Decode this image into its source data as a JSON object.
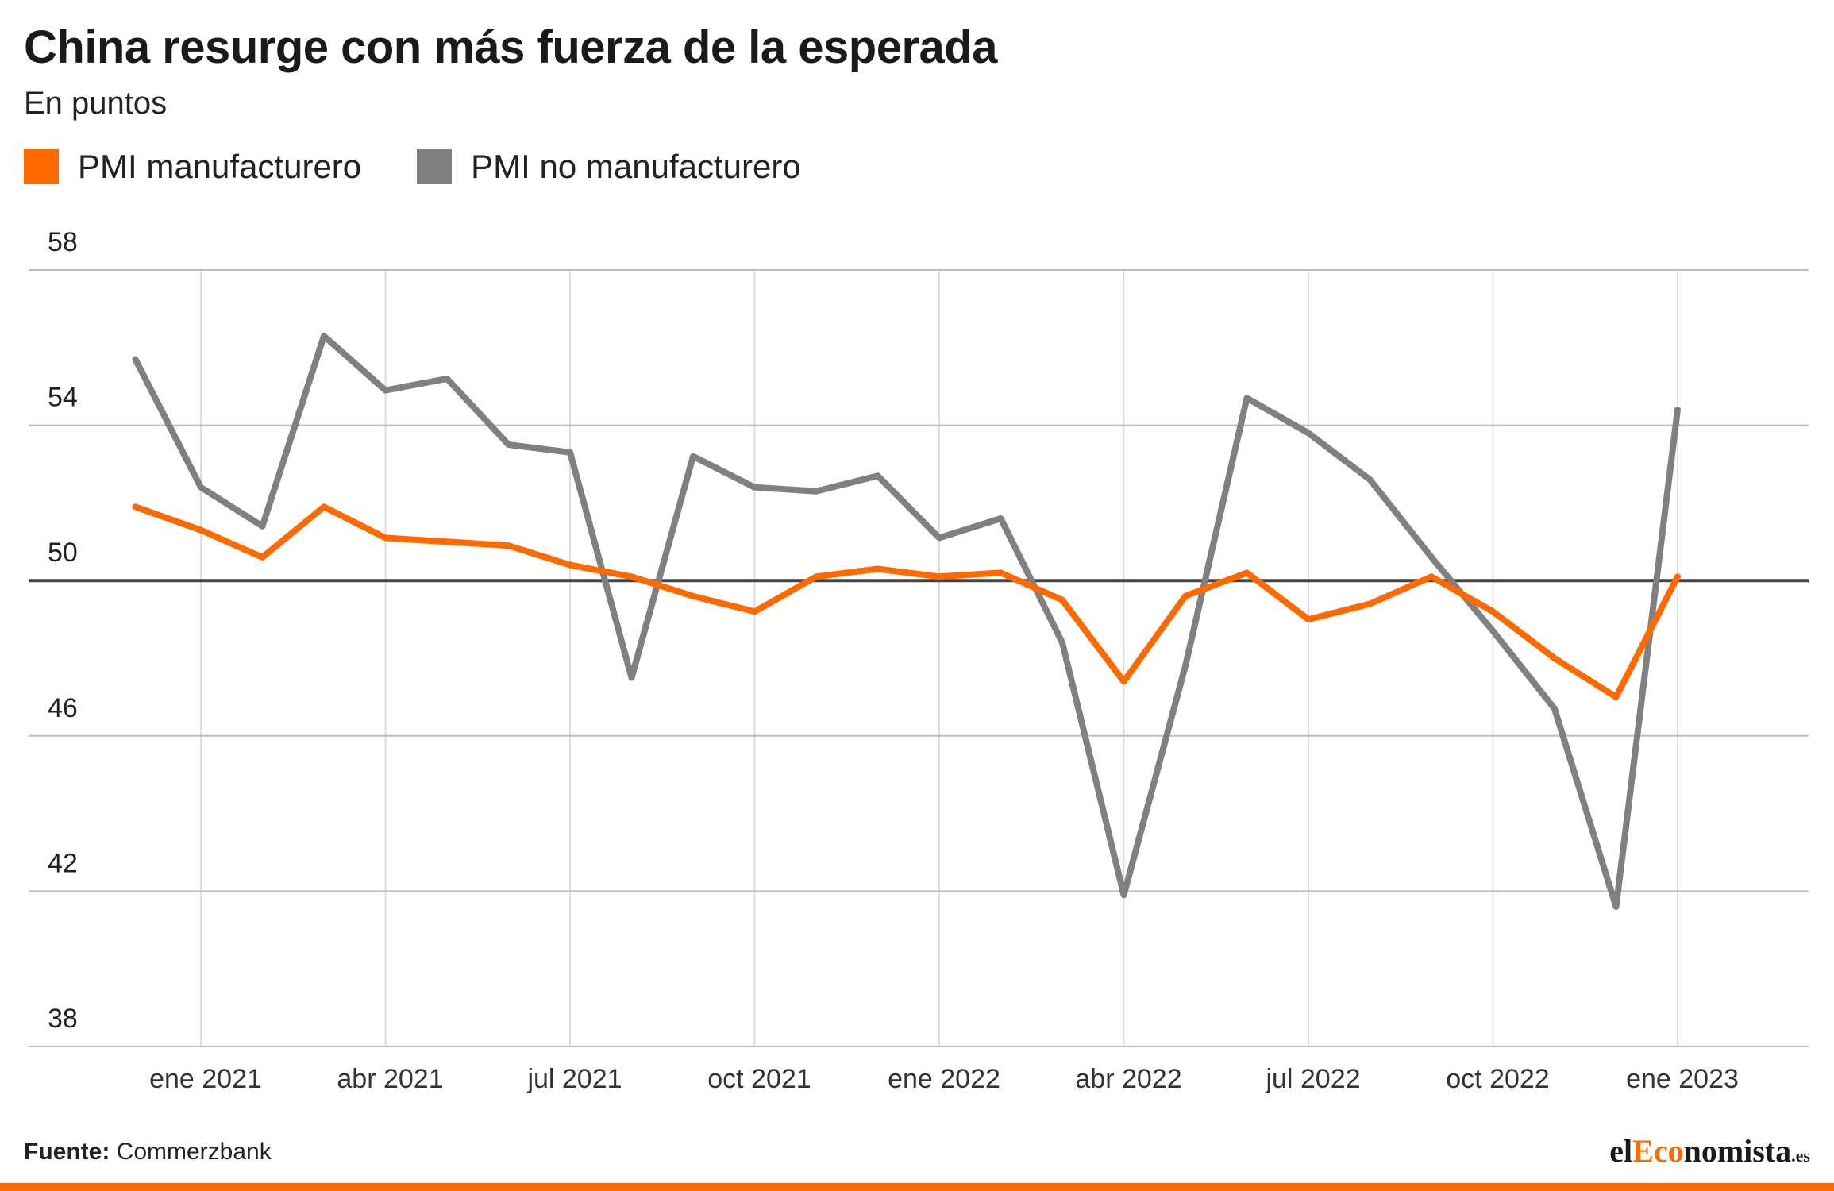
{
  "header": {
    "title": "China resurge con más fuerza de la esperada",
    "subtitle": "En puntos"
  },
  "legend": [
    {
      "label": "PMI manufacturero",
      "color": "#ff6a00"
    },
    {
      "label": "PMI no manufacturero",
      "color": "#808080"
    }
  ],
  "footer": {
    "source_label": "Fuente:",
    "source_value": "Commerzbank",
    "brand_prefix": "el",
    "brand_accent": "Eco",
    "brand_suffix": "nomista",
    "brand_domain": ".es"
  },
  "chart_data": {
    "type": "line",
    "title": "China resurge con más fuerza de la esperada",
    "subtitle": "En puntos",
    "xlabel": "",
    "ylabel": "",
    "x_ticks": [
      "ene 2021",
      "abr 2021",
      "jul 2021",
      "oct 2021",
      "ene 2022",
      "abr 2022",
      "jul 2022",
      "oct 2022",
      "ene 2023"
    ],
    "y_ticks": [
      58,
      54,
      50,
      46,
      42,
      38
    ],
    "ylim": [
      38,
      58
    ],
    "reference_line": 50,
    "grid": true,
    "legend_position": "top-left",
    "x": [
      "2020-12",
      "2021-01",
      "2021-02",
      "2021-03",
      "2021-04",
      "2021-05",
      "2021-06",
      "2021-07",
      "2021-08",
      "2021-09",
      "2021-10",
      "2021-11",
      "2021-12",
      "2022-01",
      "2022-02",
      "2022-03",
      "2022-04",
      "2022-05",
      "2022-06",
      "2022-07",
      "2022-08",
      "2022-09",
      "2022-10",
      "2022-11",
      "2022-12",
      "2023-01"
    ],
    "series": [
      {
        "name": "PMI manufacturero",
        "color": "#ff6a00",
        "values": [
          51.9,
          51.3,
          50.6,
          51.9,
          51.1,
          51.0,
          50.9,
          50.4,
          50.1,
          49.6,
          49.2,
          50.1,
          50.3,
          50.1,
          50.2,
          49.5,
          47.4,
          49.6,
          50.2,
          49.0,
          49.4,
          50.1,
          49.2,
          48.0,
          47.0,
          50.1
        ]
      },
      {
        "name": "PMI no manufacturero",
        "color": "#808080",
        "values": [
          55.7,
          52.4,
          51.4,
          56.3,
          54.9,
          55.2,
          53.5,
          53.3,
          47.5,
          53.2,
          52.4,
          52.3,
          52.7,
          51.1,
          51.6,
          48.4,
          41.9,
          47.8,
          54.7,
          53.8,
          52.6,
          50.6,
          48.7,
          46.7,
          41.6,
          54.4
        ]
      }
    ]
  }
}
